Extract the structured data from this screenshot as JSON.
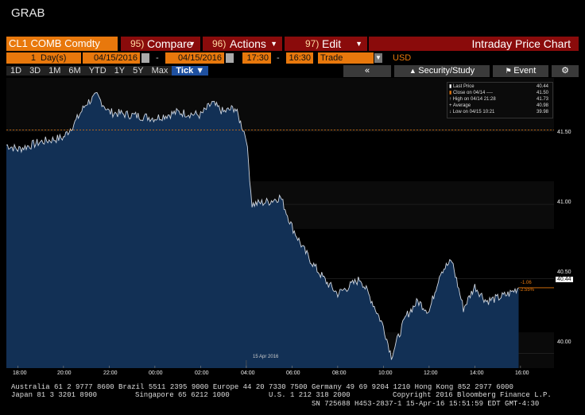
{
  "window": {
    "title": "GRAB"
  },
  "toolbar": {
    "ticker": "CL1 COMB Comdty",
    "compare": {
      "num": "95)",
      "label": "Compare"
    },
    "actions": {
      "num": "96)",
      "label": "Actions"
    },
    "edit": {
      "num": "97)",
      "label": "Edit"
    },
    "chart_type": "Intraday Price Chart"
  },
  "range": {
    "period_count": "1",
    "period_unit": "Day(s)",
    "start_date": "04/15/2016",
    "end_date": "04/15/2016",
    "start_time": "17:30",
    "end_time": "16:30",
    "field": "Trade",
    "currency": "USD",
    "dash": "-"
  },
  "timeframes": [
    "1D",
    "3D",
    "1M",
    "6M",
    "YTD",
    "1Y",
    "5Y",
    "Max"
  ],
  "tick_selector": "Tick ▼",
  "buttons": {
    "back": "«",
    "security": "Security/Study",
    "event": "Event",
    "settings_icon": "gear-icon"
  },
  "legend": {
    "items": [
      {
        "label": "Last Price",
        "value": "40.44",
        "color": "#ffffff"
      },
      {
        "label": "Close on 04/14 ----",
        "value": "41.50",
        "color": "#e8780c"
      },
      {
        "label": "High on 04/14 21:28",
        "value": "41.73",
        "color": "#dddddd"
      },
      {
        "label": "Average",
        "value": "40.98",
        "color": "#dddddd"
      },
      {
        "label": "Low on 04/15 10:21",
        "value": "39.98",
        "color": "#dddddd"
      }
    ]
  },
  "price_tags": {
    "last": "40.44",
    "change": "-1.06",
    "change_pct": "-2.55%"
  },
  "date_marker": "15 Apr 2016",
  "chart_data": {
    "type": "area",
    "y_ticks": [
      "41.50",
      "41.00",
      "40.50",
      "40.00"
    ],
    "x_ticks": [
      "18:00",
      "20:00",
      "22:00",
      "00:00",
      "02:00",
      "04:00",
      "06:00",
      "08:00",
      "10:00",
      "12:00",
      "14:00",
      "16:00"
    ],
    "ylim": [
      39.9,
      41.85
    ],
    "reference_close": 41.5,
    "series": [
      {
        "x": [
          "17:30",
          "18:00",
          "19:00",
          "20:00",
          "20:30",
          "21:00",
          "21:28",
          "22:00",
          "23:00",
          "00:00",
          "01:00",
          "02:00",
          "02:30",
          "03:00",
          "03:30",
          "04:00",
          "04:15",
          "05:00",
          "05:30",
          "06:00",
          "06:30",
          "07:00",
          "07:30",
          "08:00",
          "08:30",
          "09:00",
          "09:30",
          "10:00",
          "10:21",
          "10:45",
          "11:00",
          "11:30",
          "12:00",
          "12:30",
          "13:00",
          "13:30",
          "14:00",
          "14:30",
          "15:00",
          "15:30",
          "15:55"
        ],
        "values": [
          41.4,
          41.37,
          41.42,
          41.45,
          41.55,
          41.68,
          41.73,
          41.62,
          41.6,
          41.58,
          41.62,
          41.6,
          41.68,
          41.62,
          41.65,
          41.45,
          41.0,
          41.02,
          41.05,
          40.85,
          40.7,
          40.58,
          40.48,
          40.4,
          40.45,
          40.5,
          40.35,
          40.18,
          39.98,
          40.15,
          40.25,
          40.35,
          40.28,
          40.55,
          40.62,
          40.3,
          40.45,
          40.35,
          40.37,
          40.4,
          40.44
        ]
      }
    ]
  },
  "footer": {
    "line1": "Australia 61 2 9777 8600 Brazil 5511 2395 9000 Europe 44 20 7330 7500 Germany 49 69 9204 1210 Hong Kong 852 2977 6000",
    "line2a": "Japan 81 3 3201 8900",
    "line2b": "Singapore 65 6212 1000",
    "line2c": "U.S. 1 212 318 2000",
    "line2d": "Copyright 2016 Bloomberg Finance L.P.",
    "line3": "SN 725688 H453-2837-1 15-Apr-16 15:51:59 EDT  GMT-4:30"
  }
}
